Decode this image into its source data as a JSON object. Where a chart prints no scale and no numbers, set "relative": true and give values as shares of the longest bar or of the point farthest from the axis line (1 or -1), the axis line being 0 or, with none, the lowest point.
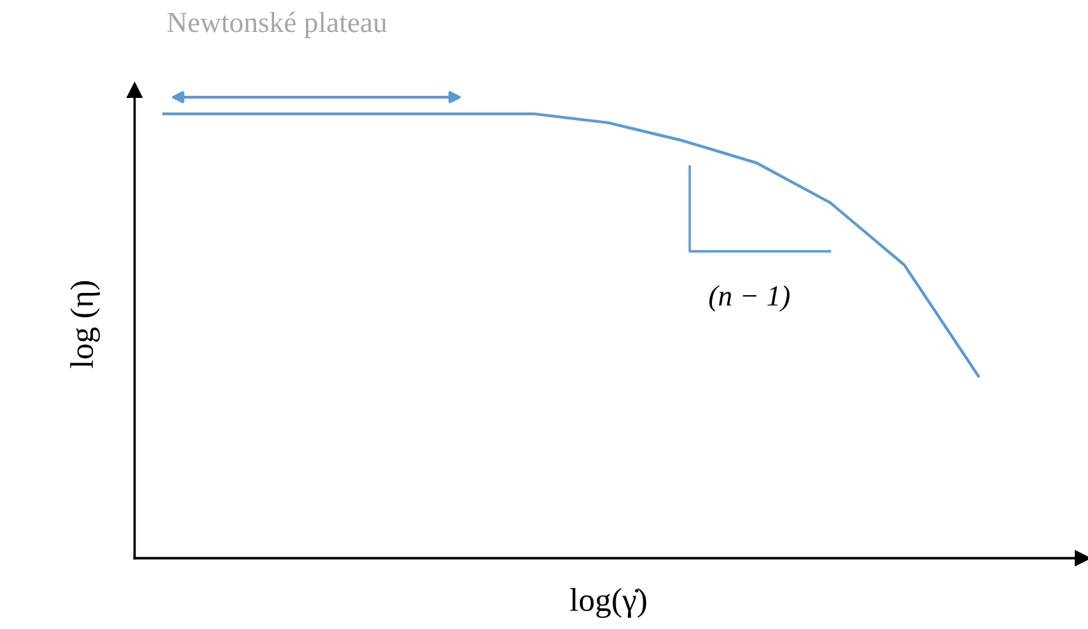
{
  "chart_data": {
    "type": "line",
    "relative": true,
    "xlabel": "log(γ̇)",
    "ylabel": "log (η)",
    "categories": [
      null,
      null,
      null,
      null,
      null,
      null,
      null,
      null,
      null,
      null,
      null,
      null
    ],
    "series": [
      {
        "color": "#5b9bd5",
        "values": [
          1,
          1,
          1,
          1,
          1,
          1,
          0.98,
          0.94,
          0.89,
          0.8,
          0.66,
          0.41
        ]
      }
    ],
    "annotations": [
      "Newtonské plateau",
      "(n − 1)"
    ],
    "grid": false,
    "legend": false,
    "marker": "none",
    "line_style": "solid"
  }
}
